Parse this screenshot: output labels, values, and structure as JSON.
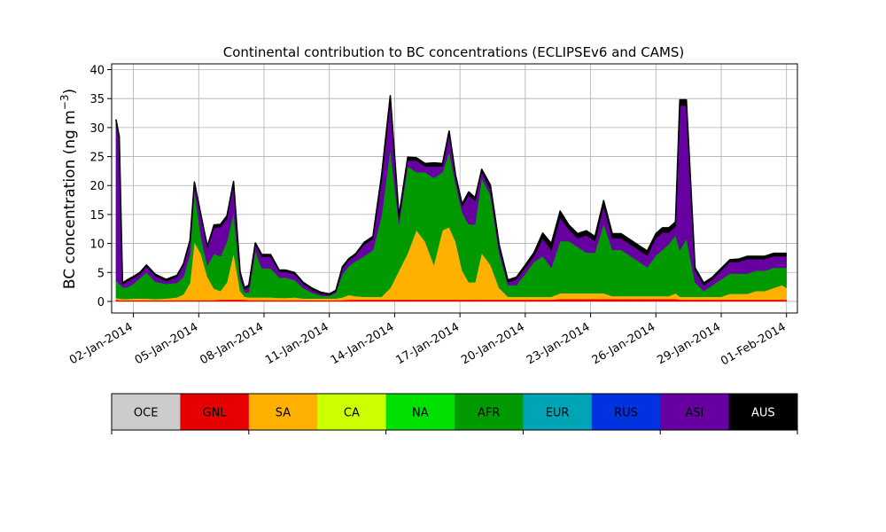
{
  "chart_data": {
    "type": "area",
    "stacked": true,
    "title": "Continental contribution to BC concentrations (ECLIPSEv6 and CAMS)",
    "ylabel_base": "BC concentration (ng m",
    "ylabel_exp": "−3",
    "ylabel_close": ")",
    "xlabel": "",
    "ylim": [
      -2,
      41
    ],
    "yticks": [
      0,
      5,
      10,
      15,
      20,
      25,
      30,
      35,
      40
    ],
    "xlim": [
      0,
      31.5
    ],
    "grid": true,
    "x_start_date": "2014-01-01",
    "xticks": [
      {
        "x": 1,
        "label": "02-Jan-2014"
      },
      {
        "x": 4,
        "label": "05-Jan-2014"
      },
      {
        "x": 7,
        "label": "08-Jan-2014"
      },
      {
        "x": 10,
        "label": "11-Jan-2014"
      },
      {
        "x": 13,
        "label": "14-Jan-2014"
      },
      {
        "x": 16,
        "label": "17-Jan-2014"
      },
      {
        "x": 19,
        "label": "20-Jan-2014"
      },
      {
        "x": 22,
        "label": "23-Jan-2014"
      },
      {
        "x": 25,
        "label": "26-Jan-2014"
      },
      {
        "x": 28,
        "label": "29-Jan-2014"
      },
      {
        "x": 31,
        "label": "01-Feb-2014"
      }
    ],
    "x": [
      0.2,
      0.35,
      0.5,
      0.7,
      1,
      1.3,
      1.6,
      2,
      2.5,
      3,
      3.3,
      3.6,
      3.8,
      4.1,
      4.4,
      4.7,
      5,
      5.3,
      5.6,
      5.9,
      6.1,
      6.3,
      6.6,
      6.9,
      7.3,
      7.7,
      8,
      8.4,
      8.8,
      9.2,
      9.6,
      10,
      10.3,
      10.6,
      10.9,
      11.2,
      11.6,
      12,
      12.4,
      12.8,
      13.2,
      13.6,
      14,
      14.4,
      14.8,
      15.2,
      15.5,
      15.8,
      16.1,
      16.4,
      16.7,
      17,
      17.4,
      17.8,
      18.2,
      18.6,
      19,
      19.4,
      19.8,
      20.2,
      20.6,
      21,
      21.4,
      21.8,
      22.2,
      22.6,
      23,
      23.4,
      23.8,
      24.2,
      24.6,
      25,
      25.3,
      25.6,
      25.9,
      26.1,
      26.4,
      26.8,
      27.2,
      27.6,
      28,
      28.4,
      28.8,
      29.2,
      29.6,
      30,
      30.4,
      30.8,
      31
    ],
    "series": [
      {
        "name": "GNL",
        "color": "#e60000",
        "values": [
          0.3,
          0.2,
          0.2,
          0.2,
          0.2,
          0.2,
          0.2,
          0.2,
          0.2,
          0.2,
          0.2,
          0.2,
          0.2,
          0.2,
          0.2,
          0.2,
          0.3,
          0.3,
          0.3,
          0.3,
          0.3,
          0.2,
          0.2,
          0.2,
          0.2,
          0.2,
          0.2,
          0.2,
          0.2,
          0.2,
          0.2,
          0.2,
          0.2,
          0.2,
          0.3,
          0.3,
          0.3,
          0.3,
          0.3,
          0.3,
          0.3,
          0.3,
          0.3,
          0.3,
          0.3,
          0.3,
          0.3,
          0.3,
          0.3,
          0.3,
          0.3,
          0.3,
          0.3,
          0.3,
          0.3,
          0.3,
          0.3,
          0.3,
          0.3,
          0.3,
          0.4,
          0.4,
          0.4,
          0.4,
          0.4,
          0.4,
          0.4,
          0.4,
          0.4,
          0.4,
          0.4,
          0.4,
          0.4,
          0.4,
          0.4,
          0.3,
          0.3,
          0.3,
          0.3,
          0.3,
          0.3,
          0.3,
          0.3,
          0.3,
          0.3,
          0.3,
          0.3,
          0.3,
          0.3
        ]
      },
      {
        "name": "SA",
        "color": "#ffb000",
        "values": [
          0.3,
          0.3,
          0.2,
          0.2,
          0.3,
          0.3,
          0.3,
          0.2,
          0.3,
          0.5,
          1,
          3,
          10,
          8,
          4,
          2,
          1.5,
          3,
          8,
          1.5,
          0.5,
          0.5,
          0.5,
          0.5,
          0.5,
          0.4,
          0.4,
          0.5,
          0.3,
          0.3,
          0.3,
          0.3,
          0.3,
          0.5,
          0.8,
          0.6,
          0.5,
          0.5,
          0.5,
          2,
          5,
          8,
          12,
          10,
          6,
          12,
          12.5,
          10,
          5,
          3,
          3,
          8,
          6,
          2,
          0.5,
          0.5,
          0.5,
          0.5,
          0.5,
          0.5,
          1,
          1,
          1,
          1,
          1,
          1,
          0.5,
          0.5,
          0.5,
          0.5,
          0.5,
          0.5,
          0.5,
          0.5,
          1,
          0.5,
          0.5,
          0.5,
          0.5,
          0.5,
          0.5,
          1,
          1,
          1,
          1.5,
          1.5,
          2,
          2.5,
          2
        ]
      },
      {
        "name": "AFR",
        "color": "#009a00",
        "values": [
          3,
          2.5,
          2,
          2,
          2.5,
          3.5,
          4.5,
          3,
          2.5,
          2.5,
          3,
          5,
          9,
          3,
          2,
          6,
          6,
          7,
          7,
          2,
          0.8,
          0.8,
          8,
          5,
          5,
          3.5,
          3.5,
          3,
          1.8,
          1,
          0.5,
          0.4,
          1,
          4,
          5,
          6,
          7,
          8,
          14,
          24,
          8,
          15,
          10,
          12,
          15,
          10,
          13,
          10,
          10,
          10,
          10,
          13,
          12,
          6,
          2,
          2,
          4,
          6,
          7,
          5,
          9,
          9,
          8,
          7,
          7,
          12,
          8,
          8,
          7,
          6,
          5,
          7,
          8,
          9,
          10,
          8,
          10,
          2.5,
          1,
          2,
          3,
          3.5,
          3.5,
          3.5,
          3.5,
          3.5,
          3.5,
          3,
          3.5
        ]
      },
      {
        "name": "ASI",
        "color": "#6600a0",
        "values": [
          27,
          25,
          0.5,
          1,
          1,
          0.7,
          1,
          1,
          0.5,
          1,
          2,
          2,
          1,
          3.5,
          3,
          4.5,
          5,
          4,
          5,
          1,
          0.5,
          1,
          1,
          2,
          2,
          1,
          1,
          1,
          0.7,
          0.5,
          0.3,
          0.2,
          0.2,
          1,
          1,
          1,
          2,
          2,
          6,
          8,
          1,
          1,
          2,
          1,
          2,
          1,
          3,
          1,
          1,
          5,
          4,
          1,
          1,
          1,
          0.5,
          1,
          1,
          1,
          3,
          3,
          4,
          2,
          1.5,
          3,
          2,
          3,
          2,
          2,
          2,
          2,
          2,
          3,
          3,
          2,
          1.5,
          25,
          23,
          2,
          1,
          1,
          1.5,
          2,
          2,
          2.5,
          2,
          2,
          2,
          2,
          2
        ]
      },
      {
        "name": "AUS",
        "color": "#000000",
        "values": [
          0.8,
          0.5,
          0.3,
          0.3,
          0.3,
          0.3,
          0.3,
          0.3,
          0.3,
          0.3,
          0.3,
          0.4,
          0.4,
          0.3,
          0.3,
          0.5,
          0.5,
          0.5,
          0.4,
          0.3,
          0.3,
          0.3,
          0.4,
          0.4,
          0.4,
          0.3,
          0.3,
          0.3,
          0.3,
          0.3,
          0.3,
          0.2,
          0.2,
          0.3,
          0.3,
          0.3,
          0.4,
          0.4,
          1,
          1.2,
          0.5,
          0.6,
          0.5,
          0.5,
          0.6,
          0.5,
          0.6,
          0.5,
          0.5,
          0.6,
          0.6,
          0.5,
          0.8,
          0.5,
          0.4,
          0.4,
          0.5,
          0.6,
          1,
          1.2,
          1.2,
          0.8,
          0.8,
          0.8,
          0.8,
          1,
          0.8,
          0.8,
          0.8,
          0.8,
          0.8,
          0.8,
          0.8,
          0.8,
          0.8,
          1,
          1,
          0.5,
          0.4,
          0.4,
          0.4,
          0.4,
          0.5,
          0.5,
          0.5,
          0.5,
          0.5,
          0.5,
          0.5
        ]
      }
    ],
    "colorbar": [
      {
        "label": "OCE",
        "color": "#cccccc",
        "text_color": "#000000"
      },
      {
        "label": "GNL",
        "color": "#e60000",
        "text_color": "#000000"
      },
      {
        "label": "SA",
        "color": "#ffb000",
        "text_color": "#000000"
      },
      {
        "label": "CA",
        "color": "#ccff00",
        "text_color": "#000000"
      },
      {
        "label": "NA",
        "color": "#00e000",
        "text_color": "#000000"
      },
      {
        "label": "AFR",
        "color": "#009a00",
        "text_color": "#000000"
      },
      {
        "label": "EUR",
        "color": "#00a5b5",
        "text_color": "#000000"
      },
      {
        "label": "RUS",
        "color": "#0032e0",
        "text_color": "#000000"
      },
      {
        "label": "ASI",
        "color": "#6600a0",
        "text_color": "#000000"
      },
      {
        "label": "AUS",
        "color": "#000000",
        "text_color": "#ffffff"
      }
    ]
  }
}
